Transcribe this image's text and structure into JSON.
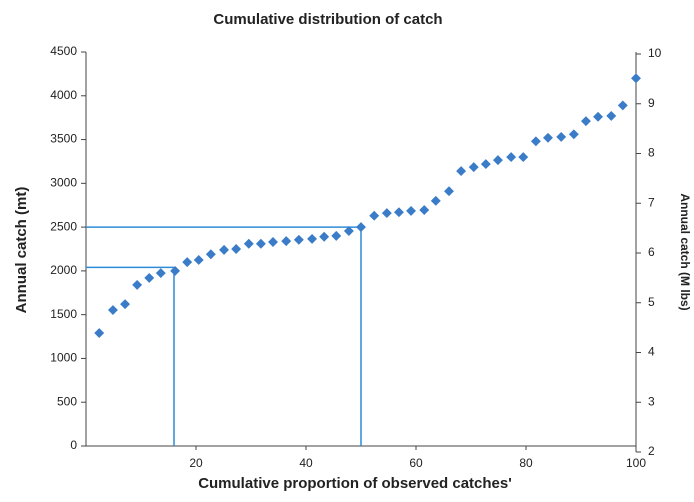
{
  "chart_data": {
    "type": "scatter",
    "title": "Cumulative distribution of catch",
    "x_label": "Cumulative proportion of observed catches'",
    "y_label": "Annual catch (mt)",
    "y2_label": "Annual catch (M lbs)",
    "xlim": [
      0,
      100
    ],
    "xticks": [
      20,
      40,
      60,
      80,
      100
    ],
    "ylim": [
      0,
      4500
    ],
    "yticks": [
      0,
      500,
      1000,
      1500,
      2000,
      2500,
      3000,
      3500,
      4000,
      4500
    ],
    "y2lim": [
      2,
      10
    ],
    "y2ticks": [
      2,
      3,
      4,
      5,
      6,
      7,
      8,
      9,
      10
    ],
    "series": [
      {
        "color": "#3a7cc8",
        "x": [
          2.4,
          4.9,
          7.1,
          9.3,
          11.5,
          13.6,
          16.2,
          18.4,
          20.5,
          22.7,
          25.1,
          27.3,
          29.6,
          31.8,
          34.0,
          36.4,
          38.7,
          41.1,
          43.3,
          45.5,
          47.8,
          50.0,
          52.4,
          54.7,
          56.9,
          59.1,
          61.5,
          63.6,
          66.0,
          68.2,
          70.5,
          72.7,
          74.9,
          77.3,
          79.5,
          81.8,
          84.0,
          86.4,
          88.7,
          90.9,
          93.1,
          95.5,
          97.6,
          100
        ],
        "values": [
          1290,
          1553,
          1620,
          1840,
          1920,
          1975,
          2000,
          2100,
          2125,
          2190,
          2240,
          2250,
          2310,
          2310,
          2330,
          2340,
          2355,
          2365,
          2390,
          2400,
          2455,
          2500,
          2630,
          2660,
          2670,
          2685,
          2695,
          2800,
          2910,
          3140,
          3185,
          3220,
          3265,
          3300,
          3300,
          3480,
          3520,
          3530,
          3560,
          3710,
          3760,
          3770,
          3890,
          4200
        ]
      }
    ],
    "reference_lines": [
      {
        "x": 16,
        "y": 2040,
        "color": "#2e8bd6"
      },
      {
        "x": 50,
        "y": 2500,
        "color": "#2e8bd6"
      }
    ]
  }
}
